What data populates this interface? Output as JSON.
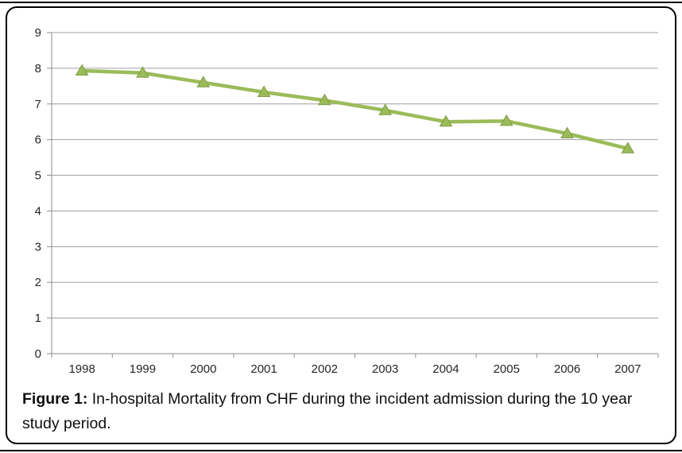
{
  "figure": {
    "caption_prefix": "Figure 1:",
    "caption_text": " In-hospital Mortality from CHF during the incident admission during the 10 year study period."
  },
  "colors": {
    "series": "#9BBB59",
    "series_dark": "#7E9D46",
    "gridline": "#A0A0A0",
    "axis": "#8C8C8C",
    "text": "#262626",
    "border": "#000000"
  },
  "chart_data": {
    "type": "line",
    "title": "",
    "xlabel": "",
    "ylabel": "",
    "categories": [
      "1998",
      "1999",
      "2000",
      "2001",
      "2002",
      "2003",
      "2004",
      "2005",
      "2006",
      "2007"
    ],
    "values": [
      7.93,
      7.87,
      7.6,
      7.33,
      7.1,
      6.82,
      6.5,
      6.52,
      6.17,
      5.75
    ],
    "ylim": [
      0,
      9
    ],
    "ytick_interval": 1,
    "yticks": [
      0,
      1,
      2,
      3,
      4,
      5,
      6,
      7,
      8,
      9
    ],
    "grid": true,
    "legend": "none",
    "marker": "triangle",
    "line_width": 4.5
  }
}
